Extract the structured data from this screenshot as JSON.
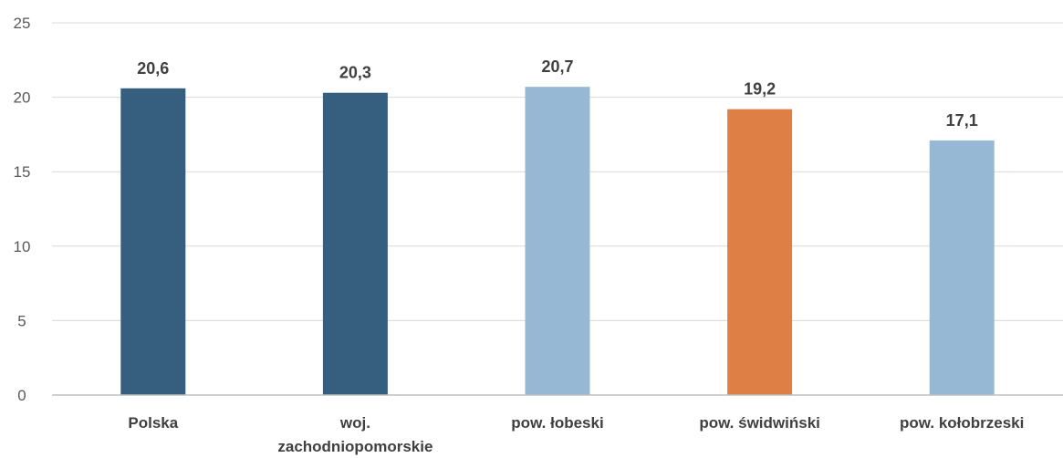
{
  "chart_data": {
    "type": "bar",
    "title": "",
    "xlabel": "",
    "ylabel": "",
    "ylim": [
      0,
      25
    ],
    "yticks": [
      0,
      5,
      10,
      15,
      20,
      25
    ],
    "grid": true,
    "legend": "none",
    "categories": [
      [
        "Polska"
      ],
      [
        "woj.",
        "zachodniopomorskie"
      ],
      [
        "pow. łobeski"
      ],
      [
        "pow. świdwiński"
      ],
      [
        "pow. kołobrzeski"
      ]
    ],
    "values": [
      20.6,
      20.3,
      20.7,
      19.2,
      17.1
    ],
    "value_labels": [
      "20,6",
      "20,3",
      "20,7",
      "19,2",
      "17,1"
    ],
    "colors": [
      "#365f7f",
      "#365f7f",
      "#97b8d5",
      "#de7f45",
      "#97b8d5"
    ],
    "gridline_color": "#d9d9d9",
    "axis_color": "#bfbfbf"
  }
}
